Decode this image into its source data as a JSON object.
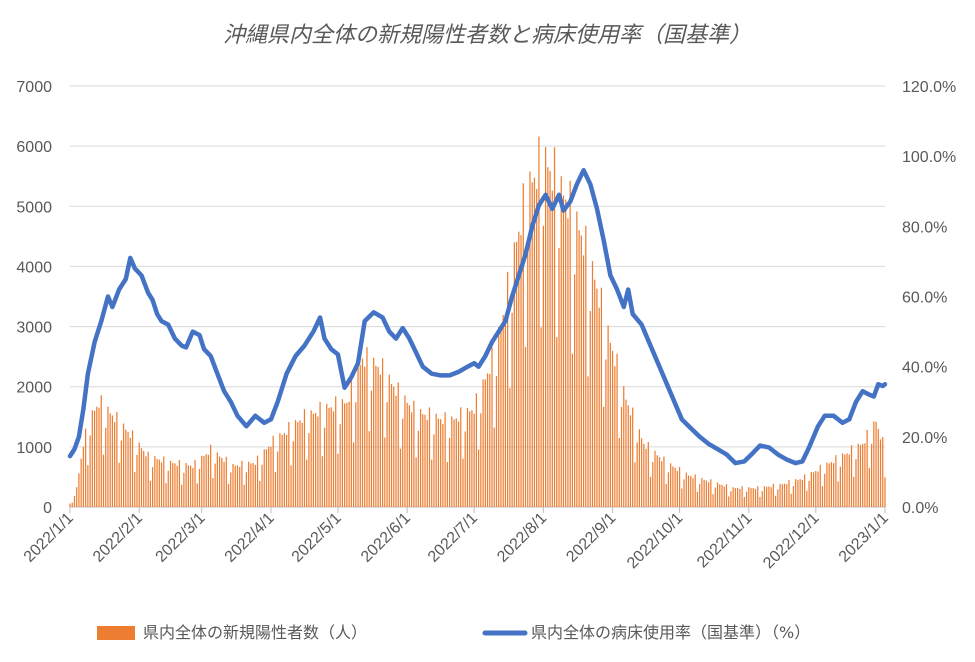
{
  "chart_data": {
    "type": "bar+line",
    "title": "沖縄県内全体の新規陽性者数と病床使用率（国基準）",
    "left_axis": {
      "min": 0,
      "max": 7000,
      "step": 1000,
      "ticks": [
        "0",
        "1000",
        "2000",
        "3000",
        "4000",
        "5000",
        "6000",
        "7000"
      ]
    },
    "right_axis": {
      "min": 0,
      "max": 120,
      "step": 20,
      "ticks": [
        "0.0%",
        "20.0%",
        "40.0%",
        "60.0%",
        "80.0%",
        "100.0%",
        "120.0%"
      ]
    },
    "x_axis": {
      "start": "2022-01-01",
      "end": "2023-01-01",
      "tick_labels": [
        "2022/1/1",
        "2022/2/1",
        "2022/3/1",
        "2022/4/1",
        "2022/5/1",
        "2022/6/1",
        "2022/7/1",
        "2022/8/1",
        "2022/9/1",
        "2022/10/1",
        "2022/11/1",
        "2022/12/1",
        "2023/1/1"
      ]
    },
    "grid": true,
    "legend_position": "bottom",
    "bar_series": {
      "name": "県内全体の新規陽性者数（人）",
      "color": "#ED7D31",
      "trend_anchors": [
        [
          "2022-01-01",
          50
        ],
        [
          "2022-01-04",
          300
        ],
        [
          "2022-01-07",
          1000
        ],
        [
          "2022-01-10",
          1400
        ],
        [
          "2022-01-14",
          1650
        ],
        [
          "2022-01-20",
          1450
        ],
        [
          "2022-01-28",
          1150
        ],
        [
          "2022-02-05",
          800
        ],
        [
          "2022-02-15",
          700
        ],
        [
          "2022-02-25",
          650
        ],
        [
          "2022-03-05",
          900
        ],
        [
          "2022-03-15",
          650
        ],
        [
          "2022-03-25",
          700
        ],
        [
          "2022-04-01",
          1000
        ],
        [
          "2022-04-15",
          1400
        ],
        [
          "2022-04-25",
          1550
        ],
        [
          "2022-05-05",
          1650
        ],
        [
          "2022-05-12",
          2350
        ],
        [
          "2022-05-20",
          2200
        ],
        [
          "2022-05-28",
          1800
        ],
        [
          "2022-06-05",
          1500
        ],
        [
          "2022-06-20",
          1350
        ],
        [
          "2022-07-01",
          1550
        ],
        [
          "2022-07-10",
          2400
        ],
        [
          "2022-07-15",
          3200
        ],
        [
          "2022-07-20",
          4200
        ],
        [
          "2022-07-25",
          5000
        ],
        [
          "2022-08-01",
          5500
        ],
        [
          "2022-08-06",
          5200
        ],
        [
          "2022-08-12",
          4800
        ],
        [
          "2022-08-18",
          4300
        ],
        [
          "2022-08-24",
          3600
        ],
        [
          "2022-08-31",
          2600
        ],
        [
          "2022-09-07",
          1700
        ],
        [
          "2022-09-15",
          1000
        ],
        [
          "2022-09-25",
          700
        ],
        [
          "2022-10-05",
          500
        ],
        [
          "2022-10-15",
          400
        ],
        [
          "2022-10-25",
          300
        ],
        [
          "2022-11-05",
          300
        ],
        [
          "2022-11-15",
          350
        ],
        [
          "2022-11-25",
          450
        ],
        [
          "2022-12-05",
          650
        ],
        [
          "2022-12-15",
          850
        ],
        [
          "2022-12-22",
          1000
        ],
        [
          "2022-12-28",
          1350
        ],
        [
          "2023-01-01",
          900
        ]
      ],
      "weekly_pattern": [
        1.15,
        0.55,
        0.85,
        1.1,
        1.05,
        1.05,
        1.0
      ]
    },
    "line_series": {
      "name": "県内全体の病床使用率（国基準）（%）",
      "color": "#4472C4",
      "points": [
        [
          "2022-01-01",
          14.5
        ],
        [
          "2022-01-03",
          16.5
        ],
        [
          "2022-01-05",
          20
        ],
        [
          "2022-01-07",
          28
        ],
        [
          "2022-01-09",
          38
        ],
        [
          "2022-01-12",
          47
        ],
        [
          "2022-01-15",
          53
        ],
        [
          "2022-01-18",
          60
        ],
        [
          "2022-01-20",
          57
        ],
        [
          "2022-01-23",
          62
        ],
        [
          "2022-01-26",
          65
        ],
        [
          "2022-01-28",
          71
        ],
        [
          "2022-01-30",
          68
        ],
        [
          "2022-02-02",
          66
        ],
        [
          "2022-02-05",
          61
        ],
        [
          "2022-02-07",
          59
        ],
        [
          "2022-02-09",
          55
        ],
        [
          "2022-02-11",
          53
        ],
        [
          "2022-02-14",
          52
        ],
        [
          "2022-02-17",
          48
        ],
        [
          "2022-02-20",
          46
        ],
        [
          "2022-02-22",
          45.5
        ],
        [
          "2022-02-25",
          50
        ],
        [
          "2022-02-28",
          49
        ],
        [
          "2022-03-02",
          45
        ],
        [
          "2022-03-05",
          43
        ],
        [
          "2022-03-08",
          38
        ],
        [
          "2022-03-11",
          33
        ],
        [
          "2022-03-14",
          30
        ],
        [
          "2022-03-17",
          26
        ],
        [
          "2022-03-21",
          23
        ],
        [
          "2022-03-25",
          26
        ],
        [
          "2022-03-29",
          24
        ],
        [
          "2022-04-01",
          25
        ],
        [
          "2022-04-04",
          30
        ],
        [
          "2022-04-08",
          38
        ],
        [
          "2022-04-12",
          43
        ],
        [
          "2022-04-16",
          46
        ],
        [
          "2022-04-20",
          50
        ],
        [
          "2022-04-23",
          54
        ],
        [
          "2022-04-25",
          48
        ],
        [
          "2022-04-28",
          45
        ],
        [
          "2022-05-01",
          43.5
        ],
        [
          "2022-05-04",
          34
        ],
        [
          "2022-05-07",
          37
        ],
        [
          "2022-05-10",
          41
        ],
        [
          "2022-05-13",
          53
        ],
        [
          "2022-05-17",
          55.5
        ],
        [
          "2022-05-21",
          54
        ],
        [
          "2022-05-24",
          50
        ],
        [
          "2022-05-27",
          48
        ],
        [
          "2022-05-30",
          51
        ],
        [
          "2022-06-02",
          48
        ],
        [
          "2022-06-05",
          44
        ],
        [
          "2022-06-08",
          40
        ],
        [
          "2022-06-12",
          38
        ],
        [
          "2022-06-16",
          37.5
        ],
        [
          "2022-06-20",
          37.5
        ],
        [
          "2022-06-24",
          38.5
        ],
        [
          "2022-06-28",
          40
        ],
        [
          "2022-07-01",
          41
        ],
        [
          "2022-07-03",
          40
        ],
        [
          "2022-07-06",
          43
        ],
        [
          "2022-07-09",
          47
        ],
        [
          "2022-07-12",
          50
        ],
        [
          "2022-07-15",
          53
        ],
        [
          "2022-07-18",
          60
        ],
        [
          "2022-07-21",
          66
        ],
        [
          "2022-07-24",
          72
        ],
        [
          "2022-07-27",
          80
        ],
        [
          "2022-07-30",
          86
        ],
        [
          "2022-08-02",
          89
        ],
        [
          "2022-08-05",
          85
        ],
        [
          "2022-08-08",
          89
        ],
        [
          "2022-08-10",
          84.5
        ],
        [
          "2022-08-13",
          87
        ],
        [
          "2022-08-16",
          92
        ],
        [
          "2022-08-19",
          96
        ],
        [
          "2022-08-22",
          92
        ],
        [
          "2022-08-25",
          85
        ],
        [
          "2022-08-28",
          76
        ],
        [
          "2022-08-31",
          66
        ],
        [
          "2022-09-03",
          62
        ],
        [
          "2022-09-06",
          57
        ],
        [
          "2022-09-08",
          62
        ],
        [
          "2022-09-10",
          55
        ],
        [
          "2022-09-14",
          52
        ],
        [
          "2022-09-18",
          46
        ],
        [
          "2022-09-22",
          40
        ],
        [
          "2022-09-26",
          34
        ],
        [
          "2022-09-29",
          29.5
        ],
        [
          "2022-10-02",
          25
        ],
        [
          "2022-10-06",
          22.5
        ],
        [
          "2022-10-10",
          20
        ],
        [
          "2022-10-14",
          18
        ],
        [
          "2022-10-18",
          16.5
        ],
        [
          "2022-10-22",
          15
        ],
        [
          "2022-10-26",
          12.5
        ],
        [
          "2022-10-30",
          13
        ],
        [
          "2022-11-03",
          15.5
        ],
        [
          "2022-11-06",
          17.5
        ],
        [
          "2022-11-10",
          17
        ],
        [
          "2022-11-14",
          15
        ],
        [
          "2022-11-18",
          13.5
        ],
        [
          "2022-11-22",
          12.5
        ],
        [
          "2022-11-25",
          13
        ],
        [
          "2022-11-28",
          17
        ],
        [
          "2022-12-02",
          23
        ],
        [
          "2022-12-05",
          26
        ],
        [
          "2022-12-09",
          26
        ],
        [
          "2022-12-13",
          24
        ],
        [
          "2022-12-16",
          25
        ],
        [
          "2022-12-19",
          30
        ],
        [
          "2022-12-22",
          33
        ],
        [
          "2022-12-25",
          32
        ],
        [
          "2022-12-27",
          31.5
        ],
        [
          "2022-12-29",
          35
        ],
        [
          "2022-12-31",
          34.5
        ],
        [
          "2023-01-01",
          35
        ]
      ]
    }
  }
}
